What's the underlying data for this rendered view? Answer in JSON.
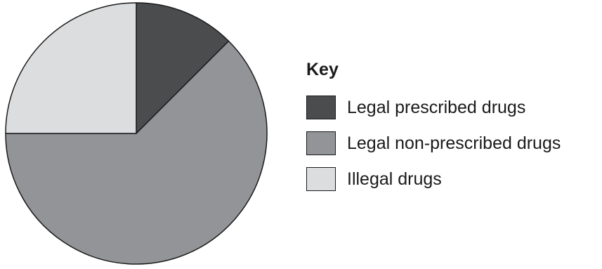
{
  "chart_data": {
    "type": "pie",
    "title": "",
    "legend": {
      "title": "Key",
      "placement": "right"
    },
    "slices": [
      {
        "label": "Legal prescribed drugs",
        "value": 12.5,
        "color": "#4b4c4e"
      },
      {
        "label": "Legal non-prescribed drugs",
        "value": 62.5,
        "color": "#929497"
      },
      {
        "label": "Illegal drugs",
        "value": 25,
        "color": "#dcddde"
      }
    ],
    "start_angle": "12 o'clock",
    "direction": "clockwise",
    "outline_color": "#1a1a1a"
  }
}
